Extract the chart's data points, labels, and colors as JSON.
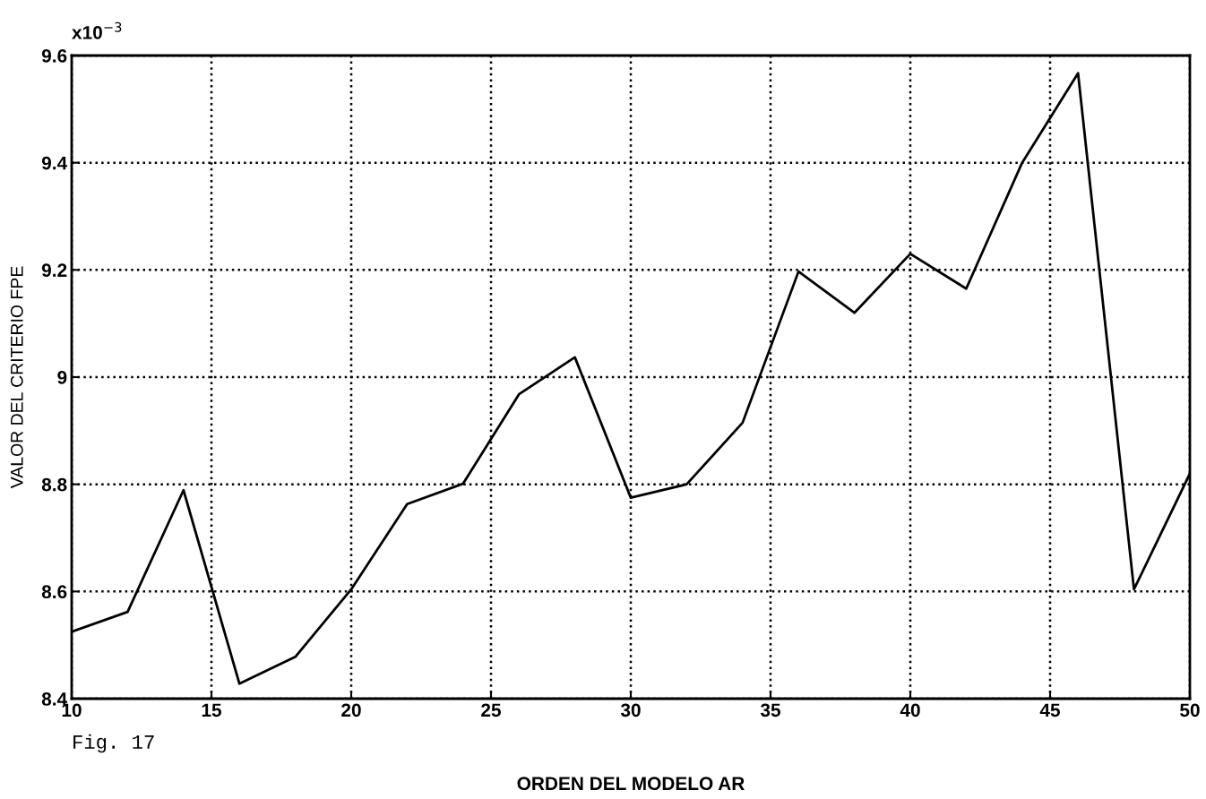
{
  "chart_data": {
    "type": "line",
    "xlabel": "ORDEN DEL MODELO AR",
    "ylabel": "VALOR DEL CRITERIO FPE",
    "annotations": [
      "x10$^{−3}$",
      "Fig. 17"
    ],
    "x": [
      10,
      12,
      14,
      16,
      18,
      20,
      22,
      24,
      26,
      28,
      30,
      32,
      34,
      36,
      38,
      40,
      42,
      44,
      46,
      48,
      50
    ],
    "series": [
      {
        "color": "#000000",
        "values": [
          8.525,
          8.562,
          8.789,
          8.428,
          8.478,
          8.604,
          8.763,
          8.801,
          8.968,
          9.037,
          8.775,
          8.8,
          8.915,
          9.197,
          9.12,
          9.23,
          9.165,
          9.4,
          9.567,
          8.604,
          8.82
        ]
      }
    ],
    "xlim": [
      10,
      50
    ],
    "xticks": [
      10,
      15,
      20,
      25,
      30,
      35,
      40,
      45,
      50
    ],
    "ylim": [
      8.4,
      9.6
    ],
    "yticks": [
      8.4,
      8.6,
      8.8,
      9,
      9.2,
      9.4,
      9.6
    ],
    "grid": true,
    "legend": false,
    "marker": "none",
    "line_style": "solid"
  }
}
